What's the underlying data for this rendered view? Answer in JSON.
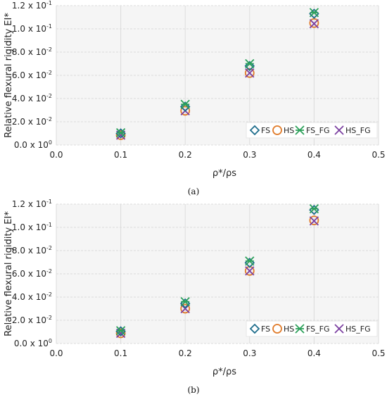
{
  "chart_data": [
    {
      "type": "scatter",
      "caption": "(a)",
      "xlabel": "ρ*/ρs",
      "ylabel": "Relative flexural rigidity EI*",
      "xlim": [
        0.0,
        0.5
      ],
      "ylim": [
        0.0,
        0.12
      ],
      "x_ticks": [
        "0.0",
        "0.1",
        "0.2",
        "0.3",
        "0.4",
        "0.5"
      ],
      "y_ticks": [
        {
          "mantissa": "0.0 x 10",
          "exp": "0"
        },
        {
          "mantissa": "2.0 x 10",
          "exp": "-2"
        },
        {
          "mantissa": "4.0 x 10",
          "exp": "-2"
        },
        {
          "mantissa": "6.0 x 10",
          "exp": "-2"
        },
        {
          "mantissa": "8.0 x 10",
          "exp": "-2"
        },
        {
          "mantissa": "1.0 x 10",
          "exp": "-1"
        },
        {
          "mantissa": "1.2 x 10",
          "exp": "-1"
        }
      ],
      "grid": true,
      "legend_position": "bottom-right",
      "x": [
        0.1,
        0.2,
        0.3,
        0.4
      ],
      "series": [
        {
          "name": "FS",
          "marker": "diamond",
          "color": "#1f6e8c",
          "values": [
            0.01,
            0.033,
            0.068,
            0.113
          ]
        },
        {
          "name": "HS",
          "marker": "circle",
          "color": "#e07b2a",
          "values": [
            0.0085,
            0.0295,
            0.062,
            0.105
          ]
        },
        {
          "name": "FS_FG",
          "marker": "asterisk",
          "color": "#2ca05a",
          "values": [
            0.0105,
            0.035,
            0.07,
            0.114
          ]
        },
        {
          "name": "HS_FG",
          "marker": "x",
          "color": "#7b3fa0",
          "values": [
            0.0085,
            0.0295,
            0.062,
            0.1045
          ]
        }
      ]
    },
    {
      "type": "scatter",
      "caption": "(b)",
      "xlabel": "ρ*/ρs",
      "ylabel": "Relative flexural rigidity EI*",
      "xlim": [
        0.0,
        0.5
      ],
      "ylim": [
        0.0,
        0.12
      ],
      "x_ticks": [
        "0.0",
        "0.1",
        "0.2",
        "0.3",
        "0.4",
        "0.5"
      ],
      "y_ticks": [
        {
          "mantissa": "0.0 x 10",
          "exp": "0"
        },
        {
          "mantissa": "2.0 x 10",
          "exp": "-2"
        },
        {
          "mantissa": "4.0 x 10",
          "exp": "-2"
        },
        {
          "mantissa": "6.0 x 10",
          "exp": "-2"
        },
        {
          "mantissa": "8.0 x 10",
          "exp": "-2"
        },
        {
          "mantissa": "1.0 x 10",
          "exp": "-1"
        },
        {
          "mantissa": "1.2 x 10",
          "exp": "-1"
        }
      ],
      "grid": true,
      "legend_position": "bottom-right",
      "x": [
        0.1,
        0.2,
        0.3,
        0.4
      ],
      "series": [
        {
          "name": "FS",
          "marker": "diamond",
          "color": "#1f6e8c",
          "values": [
            0.0105,
            0.0345,
            0.0695,
            0.115
          ]
        },
        {
          "name": "HS",
          "marker": "circle",
          "color": "#e07b2a",
          "values": [
            0.0088,
            0.03,
            0.0625,
            0.106
          ]
        },
        {
          "name": "FS_FG",
          "marker": "asterisk",
          "color": "#2ca05a",
          "values": [
            0.011,
            0.036,
            0.071,
            0.116
          ]
        },
        {
          "name": "HS_FG",
          "marker": "x",
          "color": "#7b3fa0",
          "values": [
            0.0088,
            0.03,
            0.0625,
            0.1055
          ]
        }
      ]
    }
  ]
}
